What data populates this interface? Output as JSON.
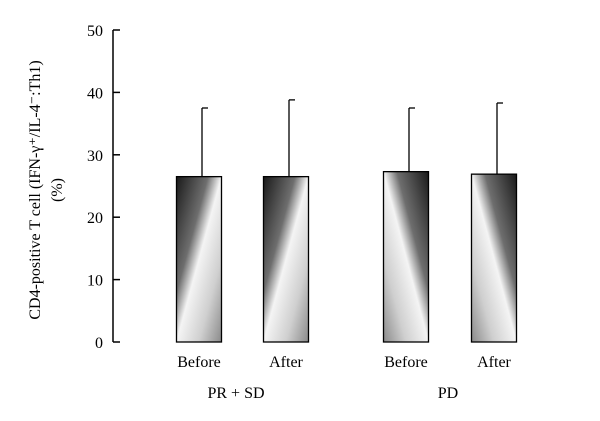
{
  "chart_data": {
    "type": "bar",
    "title": "",
    "xlabel": "",
    "ylabel_line1": "CD4-positive T cell (IFN-γ⁺/IL-4⁻:Th1)",
    "ylabel_line2": "(%)",
    "ylim": [
      0,
      50
    ],
    "yticks": [
      "0",
      "10",
      "20",
      "30",
      "40",
      "50"
    ],
    "grid": false,
    "legend": "none",
    "groups": [
      {
        "label": "PR + SD",
        "bars": [
          {
            "category": "Before",
            "value": 26.5,
            "error_upper": 37.5
          },
          {
            "category": "After",
            "value": 26.5,
            "error_upper": 38.8
          }
        ]
      },
      {
        "label": "PD",
        "bars": [
          {
            "category": "Before",
            "value": 27.3,
            "error_upper": 37.5
          },
          {
            "category": "After",
            "value": 26.9,
            "error_upper": 38.3
          }
        ]
      }
    ]
  }
}
